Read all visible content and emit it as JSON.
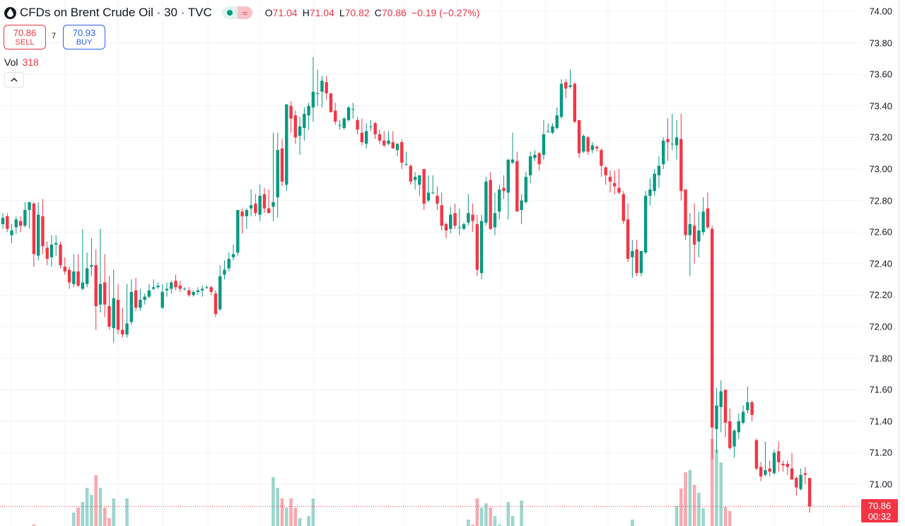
{
  "header": {
    "title": "CFDs on Brent Crude Oil · 30 · TVC",
    "icon": "oil-drop-icon",
    "status_icons": [
      "market-open-dot-icon",
      "delayed-data-icon"
    ],
    "delayed_symbol": "≈",
    "ohlc": {
      "o_label": "O",
      "o": "71.04",
      "h_label": "H",
      "h": "71.04",
      "l_label": "L",
      "l": "70.82",
      "c_label": "C",
      "c": "70.86",
      "change": "−0.19 (−0.27%)"
    }
  },
  "trade": {
    "sell_price": "70.86",
    "sell_label": "SELL",
    "spread": "7",
    "buy_price": "70.93",
    "buy_label": "BUY"
  },
  "volume": {
    "label": "Vol",
    "value": "318"
  },
  "collapse_icon": "chevron-up-icon",
  "price_tag": {
    "price": "70.86",
    "countdown": "00:32"
  },
  "colors": {
    "up": "#089981",
    "down": "#f23645",
    "up_volume": "#9cd6cc",
    "down_volume": "#f9a9ae",
    "grid": "#f0f3fa",
    "accent_buy": "#2962ff"
  },
  "chart_data": {
    "type": "candlestick",
    "title": "CFDs on Brent Crude Oil · 30 · TVC",
    "interval": "30",
    "ylim": [
      70.8,
      74.0
    ],
    "y_ticks": [
      "74.00",
      "73.80",
      "73.60",
      "73.40",
      "73.20",
      "73.00",
      "72.80",
      "72.60",
      "72.40",
      "72.20",
      "72.00",
      "71.80",
      "71.60",
      "71.40",
      "71.20",
      "71.00"
    ],
    "last_price": 70.86,
    "grid": true,
    "ohlc": [
      [
        72.65,
        72.72,
        72.62,
        72.69
      ],
      [
        72.7,
        72.72,
        72.6,
        72.62
      ],
      [
        72.58,
        72.65,
        72.53,
        72.61
      ],
      [
        72.63,
        72.7,
        72.59,
        72.68
      ],
      [
        72.67,
        72.7,
        72.6,
        72.64
      ],
      [
        72.64,
        72.79,
        72.63,
        72.74
      ],
      [
        72.74,
        72.79,
        72.62,
        72.79
      ],
      [
        72.78,
        72.79,
        72.38,
        72.46
      ],
      [
        72.45,
        72.79,
        72.42,
        72.71
      ],
      [
        72.7,
        72.81,
        72.46,
        72.51
      ],
      [
        72.5,
        72.54,
        72.39,
        72.43
      ],
      [
        72.44,
        72.58,
        72.38,
        72.52
      ],
      [
        72.52,
        72.58,
        72.45,
        72.53
      ],
      [
        72.52,
        72.54,
        72.37,
        72.39
      ],
      [
        72.38,
        72.44,
        72.33,
        72.35
      ],
      [
        72.36,
        72.38,
        72.24,
        72.28
      ],
      [
        72.27,
        72.46,
        72.25,
        72.35
      ],
      [
        72.35,
        72.46,
        72.25,
        72.26
      ],
      [
        72.24,
        72.62,
        72.23,
        72.28
      ],
      [
        72.27,
        72.47,
        72.25,
        72.37
      ],
      [
        72.38,
        72.56,
        72.32,
        72.39
      ],
      [
        72.39,
        72.49,
        71.98,
        72.13
      ],
      [
        72.14,
        72.62,
        72.09,
        72.27
      ],
      [
        72.28,
        72.46,
        72.06,
        72.14
      ],
      [
        72.13,
        72.32,
        71.98,
        72.0
      ],
      [
        71.99,
        72.36,
        71.9,
        72.18
      ],
      [
        72.17,
        72.27,
        71.95,
        71.98
      ],
      [
        71.98,
        72.12,
        71.93,
        71.95
      ],
      [
        71.95,
        72.27,
        71.93,
        72.02
      ],
      [
        72.03,
        72.3,
        72.01,
        72.22
      ],
      [
        72.23,
        72.31,
        72.1,
        72.12
      ],
      [
        72.12,
        72.24,
        72.1,
        72.17
      ],
      [
        72.17,
        72.21,
        72.14,
        72.19
      ],
      [
        72.19,
        72.27,
        72.18,
        72.23
      ],
      [
        72.24,
        72.3,
        72.23,
        72.25
      ],
      [
        72.25,
        72.28,
        72.24,
        72.26
      ],
      [
        72.12,
        72.27,
        72.11,
        72.22
      ],
      [
        72.23,
        72.28,
        72.19,
        72.24
      ],
      [
        72.24,
        72.29,
        72.21,
        72.28
      ],
      [
        72.29,
        72.33,
        72.23,
        72.25
      ],
      [
        72.26,
        72.29,
        72.22,
        72.24
      ],
      [
        72.24,
        72.25,
        72.23,
        72.24
      ],
      [
        72.23,
        72.25,
        72.19,
        72.2
      ],
      [
        72.2,
        72.23,
        72.19,
        72.22
      ],
      [
        72.22,
        72.25,
        72.2,
        72.23
      ],
      [
        72.23,
        72.26,
        72.19,
        72.24
      ],
      [
        72.25,
        72.26,
        72.24,
        72.25
      ],
      [
        72.25,
        72.26,
        72.2,
        72.22
      ],
      [
        72.21,
        72.23,
        72.06,
        72.08
      ],
      [
        72.11,
        72.39,
        72.1,
        72.32
      ],
      [
        72.33,
        72.42,
        72.3,
        72.36
      ],
      [
        72.37,
        72.47,
        72.35,
        72.43
      ],
      [
        72.44,
        72.52,
        72.42,
        72.46
      ],
      [
        72.47,
        72.74,
        72.45,
        72.74
      ],
      [
        72.73,
        72.75,
        72.59,
        72.7
      ],
      [
        72.7,
        72.75,
        72.62,
        72.74
      ],
      [
        72.75,
        72.87,
        72.7,
        72.77
      ],
      [
        72.78,
        72.84,
        72.7,
        72.72
      ],
      [
        72.71,
        72.9,
        72.67,
        72.83
      ],
      [
        72.84,
        72.88,
        72.72,
        72.75
      ],
      [
        72.75,
        72.87,
        72.72,
        72.72
      ],
      [
        72.76,
        73.23,
        72.67,
        72.79
      ],
      [
        72.82,
        73.23,
        72.69,
        73.12
      ],
      [
        73.13,
        73.19,
        72.89,
        72.92
      ],
      [
        72.9,
        73.41,
        72.86,
        73.41
      ],
      [
        73.4,
        73.43,
        73.23,
        73.32
      ],
      [
        73.34,
        73.37,
        73.16,
        73.2
      ],
      [
        73.21,
        73.33,
        73.09,
        73.27
      ],
      [
        73.26,
        73.39,
        73.18,
        73.35
      ],
      [
        73.34,
        73.42,
        73.25,
        73.4
      ],
      [
        73.39,
        73.71,
        73.3,
        73.49
      ],
      [
        73.48,
        73.63,
        73.4,
        73.48
      ],
      [
        73.49,
        73.59,
        73.39,
        73.56
      ],
      [
        73.55,
        73.59,
        73.44,
        73.48
      ],
      [
        73.48,
        73.48,
        73.36,
        73.36
      ],
      [
        73.37,
        73.42,
        73.28,
        73.3
      ],
      [
        73.28,
        73.31,
        73.25,
        73.28
      ],
      [
        73.26,
        73.33,
        73.25,
        73.32
      ],
      [
        73.31,
        73.4,
        73.3,
        73.39
      ],
      [
        73.38,
        73.42,
        73.32,
        73.38
      ],
      [
        73.31,
        73.33,
        73.22,
        73.25
      ],
      [
        73.23,
        73.32,
        73.15,
        73.17
      ],
      [
        73.16,
        73.29,
        73.13,
        73.24
      ],
      [
        73.27,
        73.31,
        73.24,
        73.27
      ],
      [
        73.29,
        73.3,
        73.19,
        73.22
      ],
      [
        73.22,
        73.25,
        73.16,
        73.18
      ],
      [
        73.18,
        73.24,
        73.14,
        73.15
      ],
      [
        73.16,
        73.24,
        73.15,
        73.18
      ],
      [
        73.17,
        73.24,
        73.13,
        73.13
      ],
      [
        73.12,
        73.16,
        73.08,
        73.16
      ],
      [
        73.17,
        73.19,
        73.0,
        73.04
      ],
      [
        73.03,
        73.11,
        73.02,
        73.03
      ],
      [
        73.02,
        73.03,
        72.9,
        72.92
      ],
      [
        72.93,
        72.98,
        72.87,
        72.95
      ],
      [
        72.9,
        72.96,
        72.83,
        72.96
      ],
      [
        73.0,
        73.0,
        72.74,
        72.78
      ],
      [
        72.8,
        72.96,
        72.79,
        72.85
      ],
      [
        72.85,
        72.96,
        72.84,
        72.85
      ],
      [
        72.83,
        72.89,
        72.74,
        72.78
      ],
      [
        72.77,
        72.85,
        72.61,
        72.64
      ],
      [
        72.65,
        72.66,
        72.56,
        72.61
      ],
      [
        72.62,
        72.76,
        72.59,
        72.71
      ],
      [
        72.72,
        72.78,
        72.62,
        72.64
      ],
      [
        72.63,
        72.75,
        72.58,
        72.63
      ],
      [
        72.62,
        72.66,
        72.61,
        72.65
      ],
      [
        72.66,
        72.84,
        72.64,
        72.72
      ],
      [
        72.71,
        72.78,
        72.6,
        72.67
      ],
      [
        72.65,
        72.71,
        72.32,
        72.36
      ],
      [
        72.34,
        72.71,
        72.3,
        72.67
      ],
      [
        72.66,
        72.95,
        72.64,
        72.92
      ],
      [
        72.93,
        72.98,
        72.61,
        72.62
      ],
      [
        72.63,
        72.85,
        72.58,
        72.72
      ],
      [
        72.73,
        72.9,
        72.68,
        72.87
      ],
      [
        72.88,
        72.96,
        72.81,
        72.86
      ],
      [
        72.85,
        73.06,
        72.68,
        73.06
      ],
      [
        73.04,
        73.23,
        73.03,
        73.06
      ],
      [
        73.05,
        73.11,
        72.73,
        72.73
      ],
      [
        72.74,
        72.84,
        72.65,
        72.8
      ],
      [
        72.79,
        72.98,
        72.78,
        72.95
      ],
      [
        72.96,
        73.11,
        72.91,
        73.08
      ],
      [
        73.07,
        73.12,
        73.05,
        73.09
      ],
      [
        73.1,
        73.11,
        72.99,
        73.03
      ],
      [
        73.09,
        73.31,
        73.06,
        73.22
      ],
      [
        73.24,
        73.29,
        73.23,
        73.24
      ],
      [
        73.23,
        73.29,
        73.22,
        73.27
      ],
      [
        73.26,
        73.39,
        73.25,
        73.34
      ],
      [
        73.33,
        73.57,
        73.32,
        73.54
      ],
      [
        73.55,
        73.57,
        73.45,
        73.51
      ],
      [
        73.52,
        73.63,
        73.51,
        73.53
      ],
      [
        73.54,
        73.55,
        73.29,
        73.3
      ],
      [
        73.31,
        73.31,
        73.07,
        73.1
      ],
      [
        73.11,
        73.22,
        73.1,
        73.21
      ],
      [
        73.2,
        73.21,
        73.09,
        73.11
      ],
      [
        73.12,
        73.17,
        73.1,
        73.15
      ],
      [
        73.14,
        73.15,
        73.11,
        73.13
      ],
      [
        73.12,
        73.13,
        72.95,
        73.02
      ],
      [
        73.01,
        73.02,
        72.9,
        72.96
      ],
      [
        72.95,
        72.99,
        72.85,
        72.92
      ],
      [
        72.91,
        72.99,
        72.84,
        72.89
      ],
      [
        72.88,
        73.0,
        72.84,
        72.85
      ],
      [
        72.84,
        72.86,
        72.65,
        72.67
      ],
      [
        72.68,
        72.78,
        72.41,
        72.43
      ],
      [
        72.44,
        72.55,
        72.31,
        72.48
      ],
      [
        72.49,
        72.55,
        72.32,
        72.34
      ],
      [
        72.34,
        72.48,
        72.32,
        72.48
      ],
      [
        72.47,
        72.86,
        72.46,
        72.83
      ],
      [
        72.83,
        72.94,
        72.77,
        72.87
      ],
      [
        72.86,
        73.0,
        72.83,
        72.97
      ],
      [
        72.96,
        73.08,
        72.88,
        73.02
      ],
      [
        73.03,
        73.2,
        73.0,
        73.18
      ],
      [
        73.19,
        73.32,
        73.05,
        73.17
      ],
      [
        73.16,
        73.35,
        73.12,
        73.16
      ],
      [
        73.15,
        73.31,
        73.06,
        73.2
      ],
      [
        73.19,
        73.35,
        72.8,
        72.86
      ],
      [
        72.87,
        72.87,
        72.55,
        72.58
      ],
      [
        72.58,
        72.72,
        72.32,
        72.65
      ],
      [
        72.64,
        72.78,
        72.4,
        72.52
      ],
      [
        72.54,
        72.73,
        72.44,
        72.61
      ],
      [
        72.6,
        72.82,
        72.58,
        72.73
      ],
      [
        72.75,
        72.85,
        72.62,
        72.63
      ],
      [
        72.62,
        72.64,
        71.16,
        71.36
      ],
      [
        71.35,
        71.61,
        71.2,
        71.5
      ],
      [
        71.49,
        71.66,
        71.33,
        71.59
      ],
      [
        71.6,
        71.6,
        71.3,
        71.39
      ],
      [
        71.4,
        71.48,
        71.22,
        71.23
      ],
      [
        71.24,
        71.35,
        71.17,
        71.34
      ],
      [
        71.33,
        71.45,
        71.29,
        71.4
      ],
      [
        71.39,
        71.5,
        71.38,
        71.46
      ],
      [
        71.47,
        71.62,
        71.45,
        71.52
      ],
      [
        71.52,
        71.53,
        71.4,
        71.44
      ],
      [
        71.28,
        71.29,
        71.09,
        71.1
      ],
      [
        71.11,
        71.14,
        71.02,
        71.05
      ],
      [
        71.06,
        71.27,
        71.05,
        71.09
      ],
      [
        71.1,
        71.15,
        71.05,
        71.08
      ],
      [
        71.07,
        71.22,
        71.06,
        71.2
      ],
      [
        71.21,
        71.27,
        71.08,
        71.14
      ],
      [
        71.13,
        71.15,
        71.08,
        71.12
      ],
      [
        71.13,
        71.15,
        71.06,
        71.11
      ],
      [
        71.1,
        71.2,
        71.03,
        71.03
      ],
      [
        71.04,
        71.05,
        70.93,
        70.98
      ],
      [
        70.97,
        71.1,
        70.96,
        71.06
      ],
      [
        71.07,
        71.11,
        71.0,
        71.06
      ],
      [
        71.04,
        71.04,
        70.82,
        70.86
      ]
    ],
    "volume": [
      300,
      300,
      300,
      300,
      300,
      300,
      300,
      440,
      300,
      300,
      300,
      300,
      300,
      300,
      300,
      300,
      673,
      769,
      879,
      1153,
      1016,
      1400,
      1153,
      769,
      563,
      947,
      300,
      300,
      947,
      300,
      300,
      300,
      300,
      300,
      300,
      300,
      300,
      300,
      300,
      300,
      300,
      300,
      300,
      300,
      300,
      300,
      300,
      300,
      300,
      300,
      300,
      300,
      300,
      300,
      300,
      300,
      300,
      300,
      300,
      300,
      300,
      1360,
      1153,
      947,
      769,
      947,
      769,
      563,
      300,
      604,
      947,
      300,
      300,
      300,
      300,
      300,
      300,
      300,
      300,
      300,
      300,
      300,
      300,
      300,
      300,
      300,
      300,
      300,
      300,
      300,
      300,
      300,
      300,
      300,
      300,
      300,
      300,
      300,
      300,
      300,
      300,
      300,
      300,
      300,
      300,
      535,
      439,
      947,
      769,
      851,
      769,
      604,
      439,
      300,
      879,
      604,
      300,
      906,
      300,
      300,
      300,
      300,
      300,
      300,
      300,
      300,
      300,
      300,
      300,
      300,
      300,
      300,
      300,
      300,
      300,
      300,
      300,
      300,
      300,
      300,
      300,
      300,
      535,
      300,
      300,
      300,
      300,
      300,
      300,
      300,
      300,
      300,
      796,
      1140,
      1455,
      1497,
      1208,
      1057,
      755,
      300,
      2100,
      1895,
      1648,
      783,
      700,
      300,
      300,
      300,
      300,
      300,
      300,
      300,
      300,
      300,
      300,
      300,
      300,
      300,
      300,
      300,
      300,
      300,
      318
    ]
  }
}
